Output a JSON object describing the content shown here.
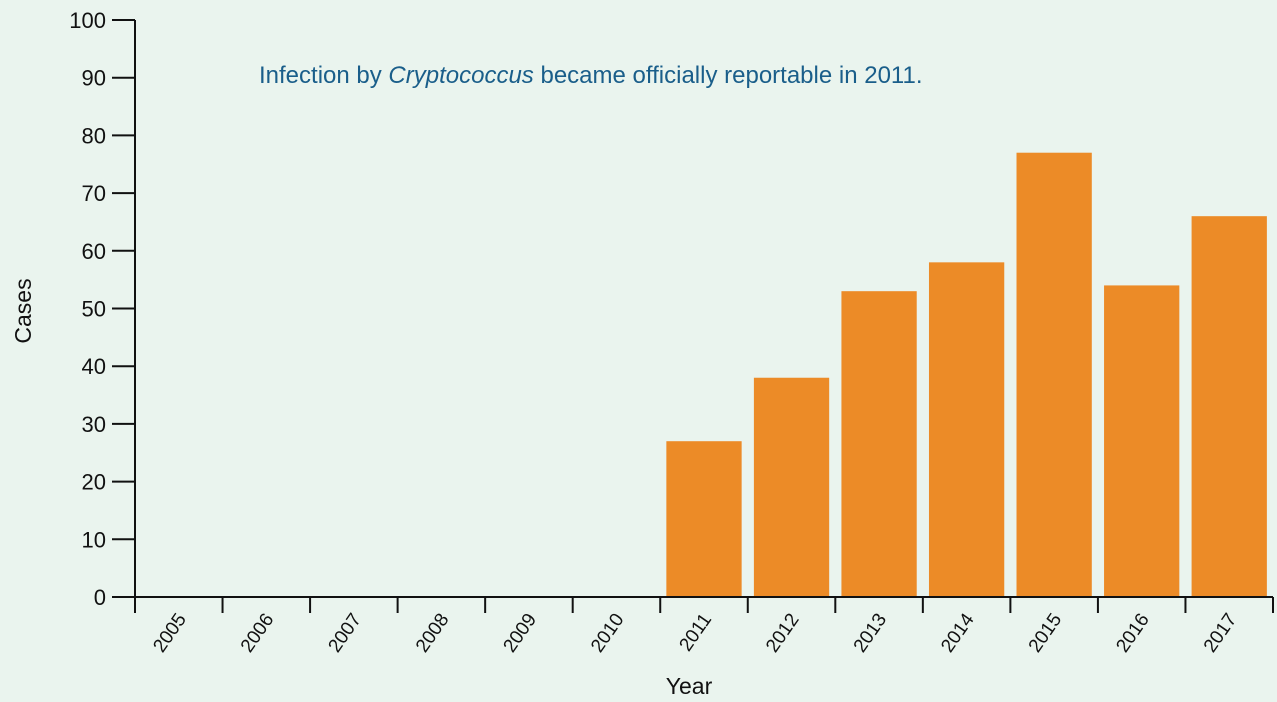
{
  "chart_data": {
    "type": "bar",
    "title": "",
    "xlabel": "Year",
    "ylabel": "Cases",
    "ylim": [
      0,
      100
    ],
    "yticks": [
      0,
      10,
      20,
      30,
      40,
      50,
      60,
      70,
      80,
      90,
      100
    ],
    "categories": [
      "2005",
      "2006",
      "2007",
      "2008",
      "2009",
      "2010",
      "2011",
      "2012",
      "2013",
      "2014",
      "2015",
      "2016",
      "2017"
    ],
    "values": [
      0,
      0,
      0,
      0,
      0,
      0,
      27,
      38,
      53,
      58,
      77,
      54,
      66
    ],
    "grid": false,
    "bar_color": "#ec8b27",
    "annotation": {
      "parts": [
        {
          "text": "Infection by ",
          "italic": false
        },
        {
          "text": "Cryptococcus",
          "italic": true
        },
        {
          "text": " became officially reportable in 2011.",
          "italic": false
        }
      ],
      "color": "#1a5e8a"
    }
  }
}
